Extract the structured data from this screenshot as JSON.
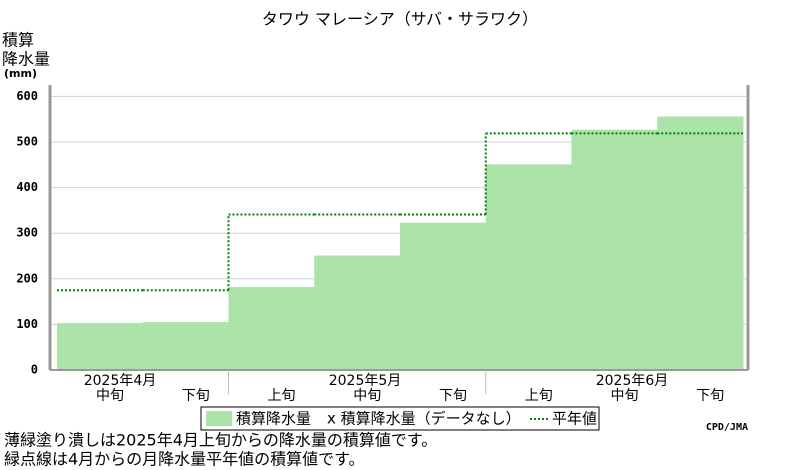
{
  "chart_data": {
    "type": "step-area",
    "title": "タワウ マレーシア（サバ・サラワク）",
    "y_label": [
      "積算",
      "降水量",
      "(mm)"
    ],
    "categories": [
      "中旬",
      "下旬",
      "上旬",
      "中旬",
      "下旬",
      "上旬",
      "中旬",
      "下旬"
    ],
    "month_labels": [
      "2025年4月",
      "2025年5月",
      "2025年6月"
    ],
    "series": [
      {
        "name": "積算降水量",
        "color": "#abe3a9",
        "values": [
          103,
          105,
          182,
          251,
          323,
          451,
          527,
          556
        ]
      },
      {
        "name": "平年値",
        "color": "#008000",
        "values": [
          175,
          175,
          341,
          341,
          341,
          519,
          519,
          519
        ]
      }
    ],
    "legend_nodata": "x 積算降水量（データなし）",
    "ylim": [
      0,
      625
    ],
    "yticks": [
      0,
      100,
      200,
      300,
      400,
      500,
      600
    ],
    "grid": true,
    "notes": [
      "薄緑塗り潰しは2025年4月上旬からの降水量の積算値です。",
      "緑点線は4月からの月降水量平年値の積算値です。"
    ],
    "credit": "CPD/JMA"
  }
}
